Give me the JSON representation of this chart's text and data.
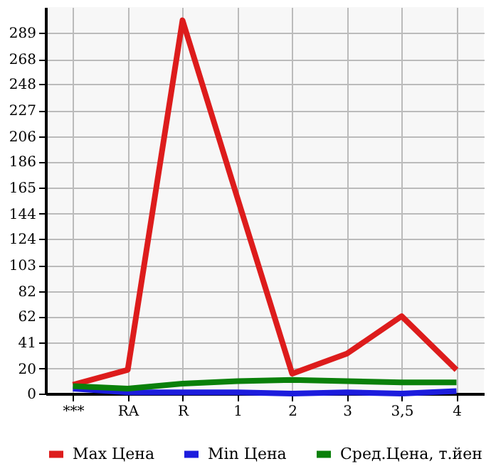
{
  "chart_data": {
    "type": "line",
    "categories": [
      "***",
      "RA",
      "R",
      "1",
      "2",
      "3",
      "3,5",
      "4"
    ],
    "series": [
      {
        "name": "Max Цена",
        "color": "#dd1c1c",
        "values": [
          7,
          19,
          299,
          157,
          16,
          32,
          62,
          19
        ]
      },
      {
        "name": "Min Цена",
        "color": "#1c1cdd",
        "values": [
          4,
          1,
          1,
          1,
          0,
          1,
          0,
          2
        ]
      },
      {
        "name": "Сред.Цена, т.йен",
        "color": "#0a800a",
        "values": [
          6,
          4,
          8,
          10,
          11,
          10,
          9,
          9
        ]
      }
    ],
    "ylim": [
      0,
      309.6
    ],
    "yticks": [
      0,
      20,
      41,
      62,
      82,
      103,
      124,
      144,
      165,
      186,
      206,
      227,
      248,
      268,
      289
    ],
    "grid": true,
    "legend": "bottom",
    "marker": "none",
    "line_style": "solid"
  }
}
